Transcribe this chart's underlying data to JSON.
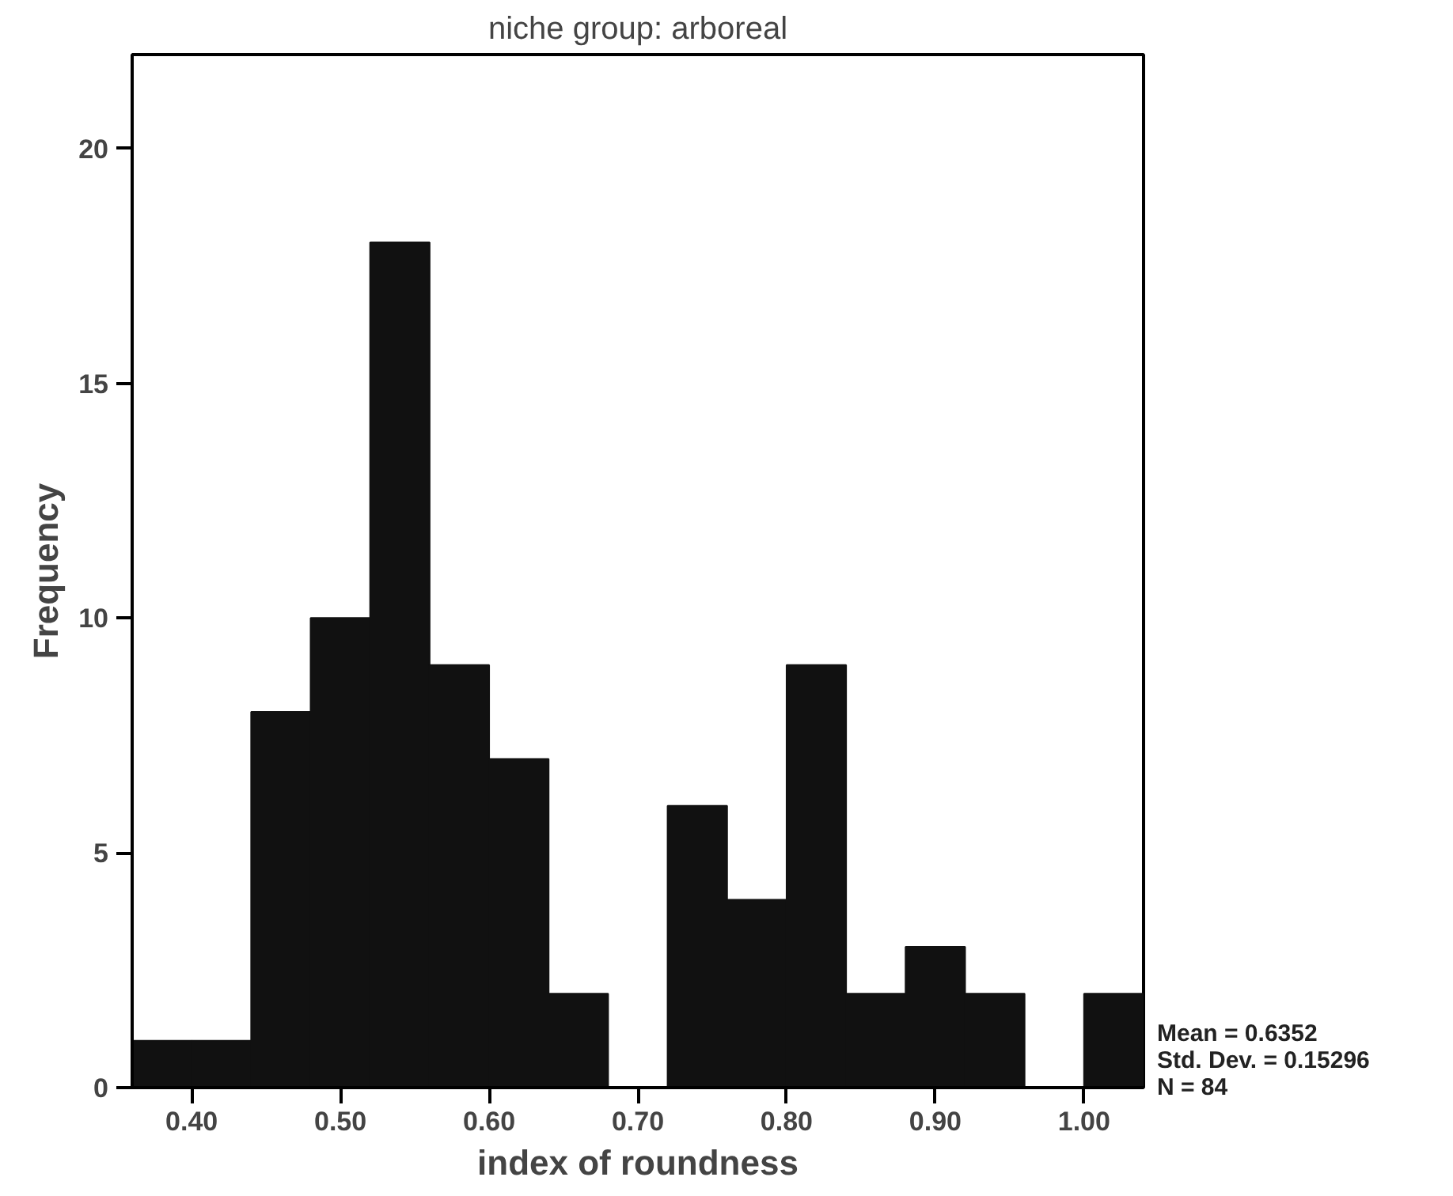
{
  "chart_data": {
    "type": "histogram",
    "title": "niche group: arboreal",
    "xlabel": "index of roundness",
    "ylabel": "Frequency",
    "bins": [
      0.36,
      0.4,
      0.44,
      0.48,
      0.52,
      0.56,
      0.6,
      0.64,
      0.68,
      0.72,
      0.76,
      0.8,
      0.84,
      0.88,
      0.92,
      0.96,
      1.0,
      1.04
    ],
    "values": [
      1,
      1,
      8,
      10,
      18,
      9,
      7,
      2,
      0,
      6,
      4,
      9,
      2,
      3,
      2,
      0,
      2
    ],
    "color": "#111111",
    "xlim": [
      0.36,
      1.04
    ],
    "ylim": [
      0,
      22
    ],
    "xticks": [
      {
        "value": 0.4,
        "label": "0.40"
      },
      {
        "value": 0.5,
        "label": "0.50"
      },
      {
        "value": 0.6,
        "label": "0.60"
      },
      {
        "value": 0.7,
        "label": "0.70"
      },
      {
        "value": 0.8,
        "label": "0.80"
      },
      {
        "value": 0.9,
        "label": "0.90"
      },
      {
        "value": 1.0,
        "label": "1.00"
      }
    ],
    "yticks": [
      0,
      5,
      10,
      15,
      20
    ],
    "grid": false,
    "annotations": [
      "Mean = 0.6352",
      "Std. Dev. = 0.15296",
      "N = 84"
    ]
  }
}
